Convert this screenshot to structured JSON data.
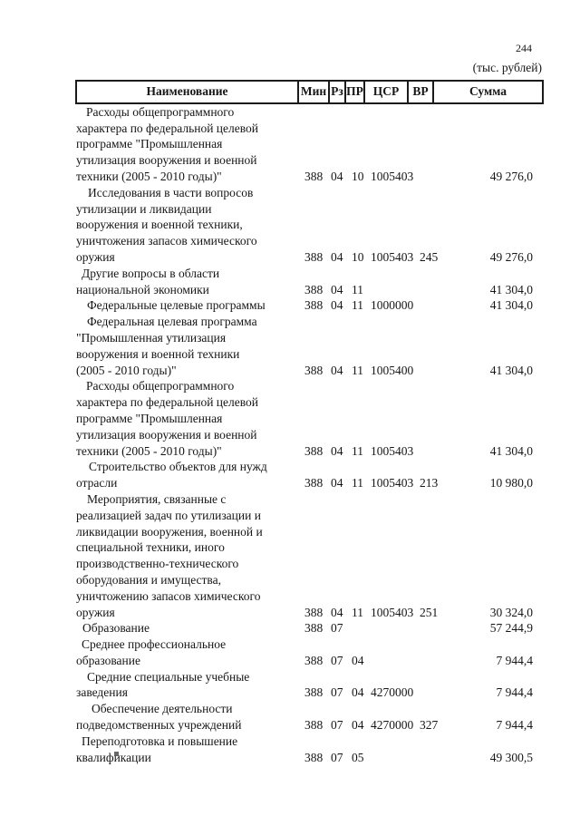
{
  "page": {
    "number": "244",
    "units": "(тыс. рублей)"
  },
  "table": {
    "columns": [
      "Наименование",
      "Мин",
      "Рз",
      "ПР",
      "ЦСР",
      "ВР",
      "Сумма"
    ],
    "rows": [
      {
        "name": "Расходы общепрограммного характера по федеральной целевой программе \"Промышленная утилизация вооружения и военной техники (2005 - 2010 годы)\"",
        "min": "388",
        "rz": "04",
        "pr": "10",
        "csr": "1005403",
        "vr": "",
        "sum": "49 276,0",
        "indent": 11
      },
      {
        "name": "Исследования в части вопросов утилизации и ликвидации вооружения и военной техники, уничтожения запасов химического оружия",
        "min": "388",
        "rz": "04",
        "pr": "10",
        "csr": "1005403",
        "vr": "245",
        "sum": "49 276,0",
        "indent": 13
      },
      {
        "name": "Другие вопросы в области национальной экономики",
        "min": "388",
        "rz": "04",
        "pr": "11",
        "csr": "",
        "vr": "",
        "sum": "41 304,0",
        "indent": 6
      },
      {
        "name": "Федеральные целевые программы",
        "min": "388",
        "rz": "04",
        "pr": "11",
        "csr": "1000000",
        "vr": "",
        "sum": "41 304,0",
        "indent": 12
      },
      {
        "name": "Федеральная целевая программа \"Промышленная утилизация вооружения и военной техники (2005 - 2010 годы)\"",
        "min": "388",
        "rz": "04",
        "pr": "11",
        "csr": "1005400",
        "vr": "",
        "sum": "41 304,0",
        "indent": 12
      },
      {
        "name": "Расходы общепрограммного характера по федеральной целевой программе \"Промышленная утилизация вооружения и военной техники (2005 - 2010 годы)\"",
        "min": "388",
        "rz": "04",
        "pr": "11",
        "csr": "1005403",
        "vr": "",
        "sum": "41 304,0",
        "indent": 11
      },
      {
        "name": "Строительство объектов для нужд отрасли",
        "min": "388",
        "rz": "04",
        "pr": "11",
        "csr": "1005403",
        "vr": "213",
        "sum": "10 980,0",
        "indent": 14
      },
      {
        "name": "Мероприятия, связанные с реализацией задач по утилизации и ликвидации вооружения, военной и специальной техники, иного производственно-технического оборудования и имущества, уничтожению запасов химического оружия",
        "min": "388",
        "rz": "04",
        "pr": "11",
        "csr": "1005403",
        "vr": "251",
        "sum": "30 324,0",
        "indent": 12
      },
      {
        "name": "Образование",
        "min": "388",
        "rz": "07",
        "pr": "",
        "csr": "",
        "vr": "",
        "sum": "57 244,9",
        "indent": 7
      },
      {
        "name": "Среднее профессиональное образование",
        "min": "388",
        "rz": "07",
        "pr": "04",
        "csr": "",
        "vr": "",
        "sum": "7 944,4",
        "indent": 6
      },
      {
        "name": "Средние специальные учебные заведения",
        "min": "388",
        "rz": "07",
        "pr": "04",
        "csr": "4270000",
        "vr": "",
        "sum": "7 944,4",
        "indent": 12
      },
      {
        "name": "Обеспечение деятельности подведомственных учреждений",
        "min": "388",
        "rz": "07",
        "pr": "04",
        "csr": "4270000",
        "vr": "327",
        "sum": "7 944,4",
        "indent": 17
      },
      {
        "name": "Переподготовка и повышение квалификации",
        "min": "388",
        "rz": "07",
        "pr": "05",
        "csr": "",
        "vr": "",
        "sum": "49 300,5",
        "indent": 6
      }
    ]
  }
}
